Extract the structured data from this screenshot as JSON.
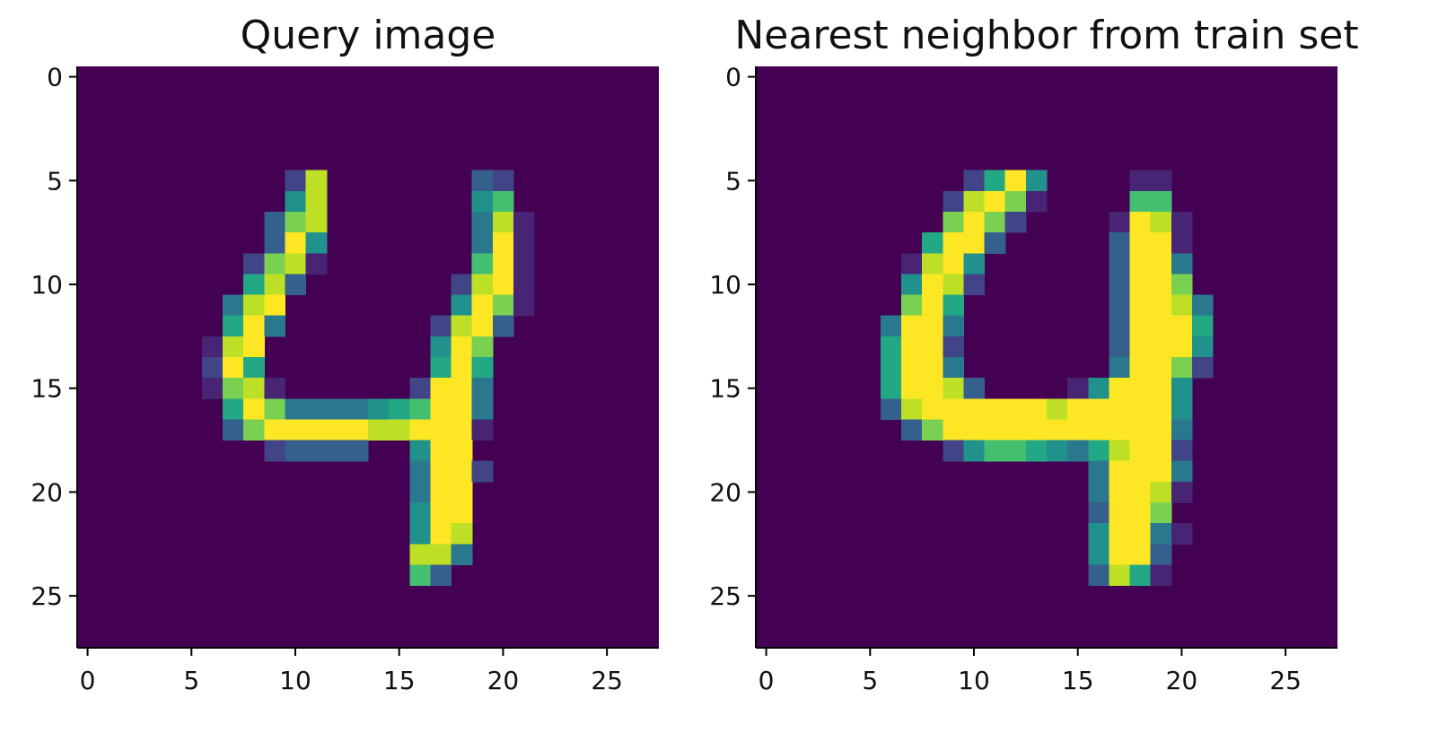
{
  "palette": [
    "#440154",
    "#482475",
    "#414487",
    "#355f8d",
    "#2a788e",
    "#21918c",
    "#22a884",
    "#44bf70",
    "#7ad151",
    "#bddf26",
    "#fde725"
  ],
  "chart_data": [
    {
      "type": "heatmap",
      "title": "Query image",
      "xlabel": "",
      "ylabel": "",
      "grid": false,
      "xlim": [
        -0.5,
        27.5
      ],
      "ylim": [
        27.5,
        -0.5
      ],
      "x_ticks": [
        0,
        5,
        10,
        15,
        20,
        25
      ],
      "y_ticks": [
        0,
        5,
        10,
        15,
        20,
        25
      ],
      "x_tick_labels": [
        "0",
        "5",
        "10",
        "15",
        "20",
        "25"
      ],
      "y_tick_labels": [
        "0",
        "5",
        "10",
        "15",
        "20",
        "25"
      ],
      "pixels": [
        [
          5,
          10,
          2
        ],
        [
          5,
          11,
          9
        ],
        [
          5,
          19,
          3
        ],
        [
          5,
          20,
          2
        ],
        [
          6,
          10,
          5
        ],
        [
          6,
          11,
          9
        ],
        [
          6,
          19,
          5
        ],
        [
          6,
          20,
          7
        ],
        [
          7,
          9,
          3
        ],
        [
          7,
          10,
          8
        ],
        [
          7,
          11,
          9
        ],
        [
          7,
          19,
          4
        ],
        [
          7,
          20,
          9
        ],
        [
          7,
          21,
          1
        ],
        [
          8,
          9,
          3
        ],
        [
          8,
          10,
          10
        ],
        [
          8,
          11,
          5
        ],
        [
          8,
          19,
          4
        ],
        [
          8,
          20,
          10
        ],
        [
          8,
          21,
          1
        ],
        [
          9,
          8,
          2
        ],
        [
          9,
          9,
          8
        ],
        [
          9,
          10,
          9
        ],
        [
          9,
          11,
          1
        ],
        [
          9,
          19,
          7
        ],
        [
          9,
          20,
          10
        ],
        [
          9,
          21,
          1
        ],
        [
          10,
          8,
          6
        ],
        [
          10,
          9,
          9
        ],
        [
          10,
          10,
          3
        ],
        [
          10,
          18,
          2
        ],
        [
          10,
          19,
          9
        ],
        [
          10,
          20,
          10
        ],
        [
          10,
          21,
          1
        ],
        [
          11,
          7,
          4
        ],
        [
          11,
          8,
          9
        ],
        [
          11,
          9,
          10
        ],
        [
          11,
          18,
          5
        ],
        [
          11,
          19,
          10
        ],
        [
          11,
          20,
          8
        ],
        [
          11,
          21,
          1
        ],
        [
          12,
          7,
          6
        ],
        [
          12,
          8,
          10
        ],
        [
          12,
          9,
          4
        ],
        [
          12,
          17,
          2
        ],
        [
          12,
          18,
          9
        ],
        [
          12,
          19,
          10
        ],
        [
          12,
          20,
          3
        ],
        [
          13,
          6,
          1
        ],
        [
          13,
          7,
          9
        ],
        [
          13,
          8,
          10
        ],
        [
          13,
          17,
          5
        ],
        [
          13,
          18,
          10
        ],
        [
          13,
          19,
          8
        ],
        [
          14,
          6,
          2
        ],
        [
          14,
          7,
          10
        ],
        [
          14,
          8,
          6
        ],
        [
          14,
          17,
          6
        ],
        [
          14,
          18,
          10
        ],
        [
          14,
          19,
          6
        ],
        [
          15,
          6,
          1
        ],
        [
          15,
          7,
          8
        ],
        [
          15,
          8,
          9
        ],
        [
          15,
          9,
          1
        ],
        [
          15,
          16,
          2
        ],
        [
          15,
          17,
          10
        ],
        [
          15,
          18,
          10
        ],
        [
          15,
          19,
          4
        ],
        [
          16,
          7,
          6
        ],
        [
          16,
          8,
          10
        ],
        [
          16,
          9,
          8
        ],
        [
          16,
          10,
          4
        ],
        [
          16,
          11,
          4
        ],
        [
          16,
          12,
          4
        ],
        [
          16,
          13,
          4
        ],
        [
          16,
          14,
          5
        ],
        [
          16,
          15,
          6
        ],
        [
          16,
          16,
          7
        ],
        [
          16,
          17,
          10
        ],
        [
          16,
          18,
          10
        ],
        [
          16,
          19,
          4
        ],
        [
          17,
          7,
          3
        ],
        [
          17,
          8,
          8
        ],
        [
          17,
          9,
          10
        ],
        [
          17,
          10,
          10
        ],
        [
          17,
          11,
          10
        ],
        [
          17,
          12,
          10
        ],
        [
          17,
          13,
          10
        ],
        [
          17,
          14,
          9
        ],
        [
          17,
          15,
          9
        ],
        [
          17,
          16,
          10
        ],
        [
          17,
          17,
          10
        ],
        [
          17,
          18,
          10
        ],
        [
          17,
          19,
          1
        ],
        [
          18,
          9,
          2
        ],
        [
          18,
          10,
          3
        ],
        [
          18,
          11,
          3
        ],
        [
          18,
          12,
          3
        ],
        [
          18,
          13,
          3
        ],
        [
          18,
          16,
          5
        ],
        [
          18,
          17,
          10
        ],
        [
          18,
          18,
          10
        ],
        [
          19,
          16,
          4
        ],
        [
          19,
          17,
          10
        ],
        [
          19,
          18,
          10
        ],
        [
          19,
          19,
          2
        ],
        [
          20,
          16,
          4
        ],
        [
          20,
          17,
          10
        ],
        [
          20,
          18,
          10
        ],
        [
          21,
          16,
          5
        ],
        [
          21,
          17,
          10
        ],
        [
          21,
          18,
          10
        ],
        [
          22,
          16,
          5
        ],
        [
          22,
          17,
          10
        ],
        [
          22,
          18,
          9
        ],
        [
          23,
          16,
          9
        ],
        [
          23,
          17,
          9
        ],
        [
          23,
          18,
          4
        ],
        [
          24,
          16,
          7
        ],
        [
          24,
          17,
          3
        ]
      ]
    },
    {
      "type": "heatmap",
      "title": "Nearest neighbor from train set",
      "xlabel": "",
      "ylabel": "",
      "grid": false,
      "xlim": [
        -0.5,
        27.5
      ],
      "ylim": [
        27.5,
        -0.5
      ],
      "x_ticks": [
        0,
        5,
        10,
        15,
        20,
        25
      ],
      "y_ticks": [
        0,
        5,
        10,
        15,
        20,
        25
      ],
      "x_tick_labels": [
        "0",
        "5",
        "10",
        "15",
        "20",
        "25"
      ],
      "y_tick_labels": [
        "0",
        "5",
        "10",
        "15",
        "20",
        "25"
      ],
      "pixels": [
        [
          5,
          10,
          2
        ],
        [
          5,
          11,
          6
        ],
        [
          5,
          12,
          10
        ],
        [
          5,
          13,
          5
        ],
        [
          5,
          18,
          1
        ],
        [
          5,
          19,
          1
        ],
        [
          6,
          9,
          2
        ],
        [
          6,
          10,
          9
        ],
        [
          6,
          11,
          10
        ],
        [
          6,
          12,
          8
        ],
        [
          6,
          13,
          1
        ],
        [
          6,
          18,
          7
        ],
        [
          6,
          19,
          7
        ],
        [
          7,
          9,
          8
        ],
        [
          7,
          10,
          10
        ],
        [
          7,
          11,
          8
        ],
        [
          7,
          12,
          2
        ],
        [
          7,
          17,
          1
        ],
        [
          7,
          18,
          10
        ],
        [
          7,
          19,
          9
        ],
        [
          7,
          20,
          1
        ],
        [
          8,
          8,
          6
        ],
        [
          8,
          9,
          10
        ],
        [
          8,
          10,
          10
        ],
        [
          8,
          11,
          3
        ],
        [
          8,
          17,
          3
        ],
        [
          8,
          18,
          10
        ],
        [
          8,
          19,
          10
        ],
        [
          8,
          20,
          1
        ],
        [
          9,
          7,
          1
        ],
        [
          9,
          8,
          9
        ],
        [
          9,
          9,
          10
        ],
        [
          9,
          10,
          5
        ],
        [
          9,
          17,
          3
        ],
        [
          9,
          18,
          10
        ],
        [
          9,
          19,
          10
        ],
        [
          9,
          20,
          4
        ],
        [
          10,
          7,
          5
        ],
        [
          10,
          8,
          10
        ],
        [
          10,
          9,
          9
        ],
        [
          10,
          10,
          2
        ],
        [
          10,
          17,
          3
        ],
        [
          10,
          18,
          10
        ],
        [
          10,
          19,
          10
        ],
        [
          10,
          20,
          8
        ],
        [
          11,
          7,
          8
        ],
        [
          11,
          8,
          10
        ],
        [
          11,
          9,
          6
        ],
        [
          11,
          17,
          3
        ],
        [
          11,
          18,
          10
        ],
        [
          11,
          19,
          10
        ],
        [
          11,
          20,
          9
        ],
        [
          11,
          21,
          4
        ],
        [
          12,
          6,
          4
        ],
        [
          12,
          7,
          10
        ],
        [
          12,
          8,
          10
        ],
        [
          12,
          9,
          4
        ],
        [
          12,
          17,
          3
        ],
        [
          12,
          18,
          10
        ],
        [
          12,
          19,
          10
        ],
        [
          12,
          20,
          10
        ],
        [
          12,
          21,
          6
        ],
        [
          13,
          6,
          6
        ],
        [
          13,
          7,
          10
        ],
        [
          13,
          8,
          10
        ],
        [
          13,
          9,
          2
        ],
        [
          13,
          17,
          3
        ],
        [
          13,
          18,
          10
        ],
        [
          13,
          19,
          10
        ],
        [
          13,
          20,
          10
        ],
        [
          13,
          21,
          5
        ],
        [
          14,
          6,
          6
        ],
        [
          14,
          7,
          10
        ],
        [
          14,
          8,
          10
        ],
        [
          14,
          9,
          4
        ],
        [
          14,
          17,
          4
        ],
        [
          14,
          18,
          10
        ],
        [
          14,
          19,
          10
        ],
        [
          14,
          20,
          8
        ],
        [
          14,
          21,
          2
        ],
        [
          15,
          6,
          6
        ],
        [
          15,
          7,
          10
        ],
        [
          15,
          8,
          10
        ],
        [
          15,
          9,
          9
        ],
        [
          15,
          10,
          3
        ],
        [
          15,
          15,
          1
        ],
        [
          15,
          16,
          5
        ],
        [
          15,
          17,
          10
        ],
        [
          15,
          18,
          10
        ],
        [
          15,
          19,
          10
        ],
        [
          15,
          20,
          5
        ],
        [
          16,
          6,
          3
        ],
        [
          16,
          7,
          9
        ],
        [
          16,
          8,
          10
        ],
        [
          16,
          9,
          10
        ],
        [
          16,
          10,
          10
        ],
        [
          16,
          11,
          10
        ],
        [
          16,
          12,
          10
        ],
        [
          16,
          13,
          10
        ],
        [
          16,
          14,
          9
        ],
        [
          16,
          15,
          10
        ],
        [
          16,
          16,
          10
        ],
        [
          16,
          17,
          10
        ],
        [
          16,
          18,
          10
        ],
        [
          16,
          19,
          10
        ],
        [
          16,
          20,
          5
        ],
        [
          17,
          7,
          3
        ],
        [
          17,
          8,
          8
        ],
        [
          17,
          9,
          10
        ],
        [
          17,
          10,
          10
        ],
        [
          17,
          11,
          10
        ],
        [
          17,
          12,
          10
        ],
        [
          17,
          13,
          10
        ],
        [
          17,
          14,
          10
        ],
        [
          17,
          15,
          10
        ],
        [
          17,
          16,
          10
        ],
        [
          17,
          17,
          10
        ],
        [
          17,
          18,
          10
        ],
        [
          17,
          19,
          10
        ],
        [
          17,
          20,
          4
        ],
        [
          18,
          9,
          2
        ],
        [
          18,
          10,
          5
        ],
        [
          18,
          11,
          7
        ],
        [
          18,
          12,
          7
        ],
        [
          18,
          13,
          6
        ],
        [
          18,
          14,
          5
        ],
        [
          18,
          15,
          4
        ],
        [
          18,
          16,
          6
        ],
        [
          18,
          17,
          9
        ],
        [
          18,
          18,
          10
        ],
        [
          18,
          19,
          10
        ],
        [
          18,
          20,
          2
        ],
        [
          19,
          16,
          4
        ],
        [
          19,
          17,
          10
        ],
        [
          19,
          18,
          10
        ],
        [
          19,
          19,
          10
        ],
        [
          19,
          20,
          4
        ],
        [
          20,
          16,
          4
        ],
        [
          20,
          17,
          10
        ],
        [
          20,
          18,
          10
        ],
        [
          20,
          19,
          9
        ],
        [
          20,
          20,
          1
        ],
        [
          21,
          16,
          3
        ],
        [
          21,
          17,
          10
        ],
        [
          21,
          18,
          10
        ],
        [
          21,
          19,
          8
        ],
        [
          22,
          16,
          5
        ],
        [
          22,
          17,
          10
        ],
        [
          22,
          18,
          10
        ],
        [
          22,
          19,
          4
        ],
        [
          22,
          20,
          1
        ],
        [
          23,
          16,
          5
        ],
        [
          23,
          17,
          10
        ],
        [
          23,
          18,
          10
        ],
        [
          23,
          19,
          3
        ],
        [
          24,
          16,
          3
        ],
        [
          24,
          17,
          9
        ],
        [
          24,
          18,
          6
        ],
        [
          24,
          19,
          1
        ]
      ]
    }
  ]
}
